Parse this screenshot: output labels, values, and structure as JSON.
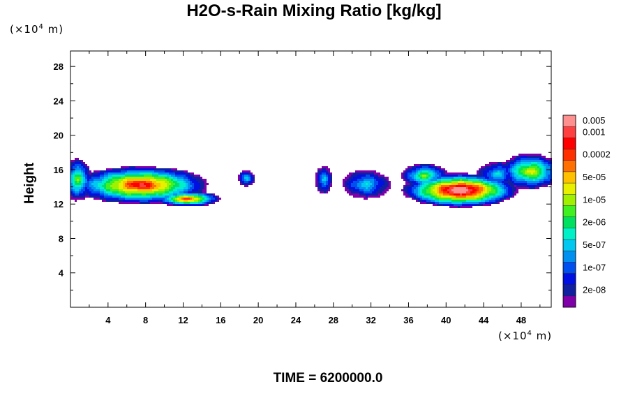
{
  "chart_data": {
    "type": "heatmap",
    "title": "H2O-s-Rain Mixing Ratio [kg/kg]",
    "ylabel": "Height",
    "xlabel": "",
    "x_unit": {
      "prefix": "(×10",
      "exp": "4",
      "suffix": " m)"
    },
    "y_unit": {
      "prefix": "(×10",
      "exp": "4",
      "suffix": " m)"
    },
    "xlim": [
      0,
      51.2
    ],
    "ylim": [
      0,
      29.8
    ],
    "x_ticks": [
      4,
      8,
      12,
      16,
      20,
      24,
      28,
      32,
      36,
      40,
      44,
      48
    ],
    "y_ticks": [
      4,
      8,
      12,
      16,
      20,
      24,
      28
    ],
    "x_tick_labels": [
      "4",
      "8",
      "12",
      "16",
      "20",
      "24",
      "28",
      "32",
      "36",
      "40",
      "44",
      "48"
    ],
    "y_tick_labels": [
      "4",
      "8",
      "12",
      "16",
      "20",
      "24",
      "28"
    ],
    "colorbar": {
      "colors": [
        "#7f00a8",
        "#1020a0",
        "#0010e0",
        "#0050f0",
        "#0090f0",
        "#00c8f0",
        "#00f0c8",
        "#00e060",
        "#40f020",
        "#a0f000",
        "#e8f000",
        "#ffc000",
        "#ff7000",
        "#ff3000",
        "#ff0000",
        "#ff4040",
        "#ff9090"
      ],
      "labels": [
        "2e-08",
        "1e-07",
        "5e-07",
        "2e-06",
        "1e-05",
        "5e-05",
        "0.0002",
        "0.001",
        "0.005"
      ],
      "label_levels": [
        1,
        3,
        5,
        7,
        9,
        11,
        13,
        15,
        16
      ]
    },
    "features": [
      {
        "name": "cloud-left",
        "xc": 7.5,
        "yc": 14.2,
        "rx": 7.2,
        "ry": 2.2,
        "peak": 10
      },
      {
        "name": "cloud-left-edge",
        "xc": 0.8,
        "yc": 14.8,
        "rx": 1.5,
        "ry": 2.5,
        "peak": 6
      },
      {
        "name": "cloud-left-low",
        "xc": 12.5,
        "yc": 12.6,
        "rx": 3.5,
        "ry": 0.9,
        "peak": 9
      },
      {
        "name": "cloud-small-1",
        "xc": 18.8,
        "yc": 15.0,
        "rx": 0.9,
        "ry": 1.0,
        "peak": 4
      },
      {
        "name": "cloud-small-2",
        "xc": 27.0,
        "yc": 14.8,
        "rx": 0.9,
        "ry": 1.7,
        "peak": 4
      },
      {
        "name": "cloud-mid",
        "xc": 31.5,
        "yc": 14.3,
        "rx": 2.6,
        "ry": 1.7,
        "peak": 4
      },
      {
        "name": "cloud-right",
        "xc": 41.5,
        "yc": 13.6,
        "rx": 6.2,
        "ry": 2.0,
        "peak": 12
      },
      {
        "name": "cloud-right-top",
        "xc": 37.7,
        "yc": 15.3,
        "rx": 2.5,
        "ry": 1.4,
        "peak": 6
      },
      {
        "name": "cloud-far-right",
        "xc": 49.0,
        "yc": 15.8,
        "rx": 3.3,
        "ry": 2.1,
        "peak": 7
      },
      {
        "name": "cloud-far-right-2",
        "xc": 45.5,
        "yc": 15.5,
        "rx": 2.2,
        "ry": 1.4,
        "peak": 4
      }
    ]
  },
  "footer": {
    "time_label": "TIME = 6200000.0"
  }
}
